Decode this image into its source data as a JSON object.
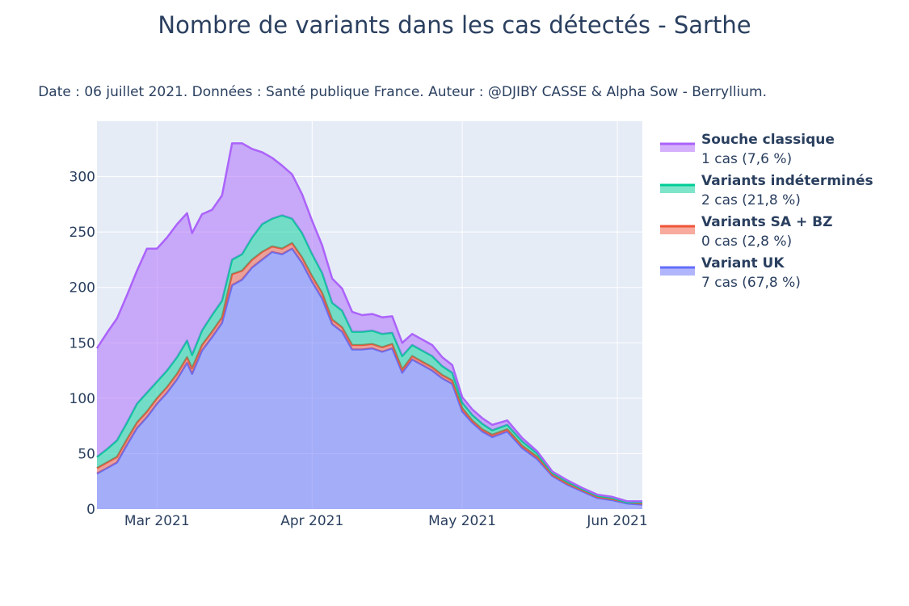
{
  "chart_data": {
    "type": "area",
    "title": "Nombre de variants dans les cas détectés - Sarthe",
    "subtitle": "Date : 06 juillet 2021. Données : Santé publique France. Auteur : @DJIBY CASSE & Alpha Sow - Berryllium.",
    "xlabel": "",
    "ylabel": "",
    "x_start": "2021-02-17",
    "x_end": "2021-06-06",
    "ylim": [
      0,
      350
    ],
    "y_ticks": [
      0,
      50,
      100,
      150,
      200,
      250,
      300
    ],
    "x_ticks": [
      {
        "date": "2021-03-01",
        "label": "Mar 2021"
      },
      {
        "date": "2021-04-01",
        "label": "Apr 2021"
      },
      {
        "date": "2021-05-01",
        "label": "May 2021"
      },
      {
        "date": "2021-06-01",
        "label": "Jun 2021"
      }
    ],
    "grid": true,
    "legend_position": "right",
    "x": [
      "2021-02-17",
      "2021-02-19",
      "2021-02-21",
      "2021-02-23",
      "2021-02-25",
      "2021-02-27",
      "2021-03-01",
      "2021-03-03",
      "2021-03-05",
      "2021-03-07",
      "2021-03-08",
      "2021-03-10",
      "2021-03-12",
      "2021-03-14",
      "2021-03-16",
      "2021-03-18",
      "2021-03-20",
      "2021-03-22",
      "2021-03-24",
      "2021-03-26",
      "2021-03-28",
      "2021-03-30",
      "2021-04-01",
      "2021-04-03",
      "2021-04-05",
      "2021-04-07",
      "2021-04-09",
      "2021-04-11",
      "2021-04-13",
      "2021-04-15",
      "2021-04-17",
      "2021-04-19",
      "2021-04-21",
      "2021-04-23",
      "2021-04-25",
      "2021-04-27",
      "2021-04-29",
      "2021-05-01",
      "2021-05-03",
      "2021-05-05",
      "2021-05-07",
      "2021-05-10",
      "2021-05-13",
      "2021-05-16",
      "2021-05-19",
      "2021-05-22",
      "2021-05-25",
      "2021-05-28",
      "2021-05-31",
      "2021-06-03",
      "2021-06-06"
    ],
    "series": [
      {
        "name": "Variant UK",
        "detail": "7 cas (67,8 %)",
        "color": "#636efa",
        "fill": "rgba(99,110,250,0.5)",
        "values": [
          32,
          37,
          42,
          58,
          73,
          83,
          95,
          105,
          117,
          132,
          122,
          143,
          155,
          168,
          202,
          207,
          218,
          225,
          232,
          230,
          235,
          222,
          205,
          190,
          167,
          160,
          144,
          144,
          145,
          142,
          145,
          123,
          135,
          130,
          125,
          118,
          113,
          88,
          78,
          70,
          65,
          70,
          55,
          45,
          30,
          22,
          16,
          10,
          8,
          5,
          4
        ]
      },
      {
        "name": "Variants SA + BZ",
        "detail": "0 cas (2,8 %)",
        "color": "#ef553b",
        "fill": "rgba(239,85,59,0.5)",
        "values": [
          5,
          5,
          5,
          5,
          5,
          5,
          5,
          5,
          5,
          5,
          5,
          5,
          5,
          5,
          10,
          8,
          7,
          7,
          5,
          5,
          5,
          5,
          5,
          5,
          4,
          4,
          4,
          4,
          4,
          4,
          4,
          3,
          3,
          3,
          3,
          3,
          3,
          3,
          2,
          2,
          2,
          2,
          2,
          2,
          1,
          1,
          1,
          1,
          1,
          1,
          1
        ]
      },
      {
        "name": "Variants indéterminés",
        "detail": "2 cas (21,8 %)",
        "color": "#00cc96",
        "fill": "rgba(0,204,150,0.5)",
        "values": [
          10,
          12,
          15,
          15,
          17,
          17,
          15,
          15,
          15,
          15,
          12,
          13,
          15,
          15,
          13,
          15,
          20,
          25,
          25,
          30,
          22,
          22,
          20,
          18,
          15,
          15,
          12,
          12,
          12,
          12,
          10,
          12,
          10,
          10,
          10,
          8,
          7,
          5,
          5,
          5,
          4,
          4,
          4,
          3,
          2,
          2,
          1,
          1,
          1,
          0,
          1
        ]
      },
      {
        "name": "Souche classique",
        "detail": "1 cas (7,6 %)",
        "color": "#ab63fa",
        "fill": "rgba(171,99,250,0.5)",
        "values": [
          98,
          105,
          110,
          115,
          120,
          130,
          120,
          120,
          120,
          115,
          110,
          105,
          95,
          95,
          105,
          100,
          80,
          65,
          55,
          45,
          40,
          35,
          30,
          25,
          22,
          20,
          18,
          15,
          15,
          15,
          15,
          12,
          10,
          10,
          10,
          8,
          7,
          5,
          5,
          5,
          5,
          4,
          3,
          2,
          1,
          1,
          1,
          1,
          1,
          1,
          1
        ]
      }
    ]
  },
  "legend_order": [
    3,
    2,
    1,
    0
  ]
}
